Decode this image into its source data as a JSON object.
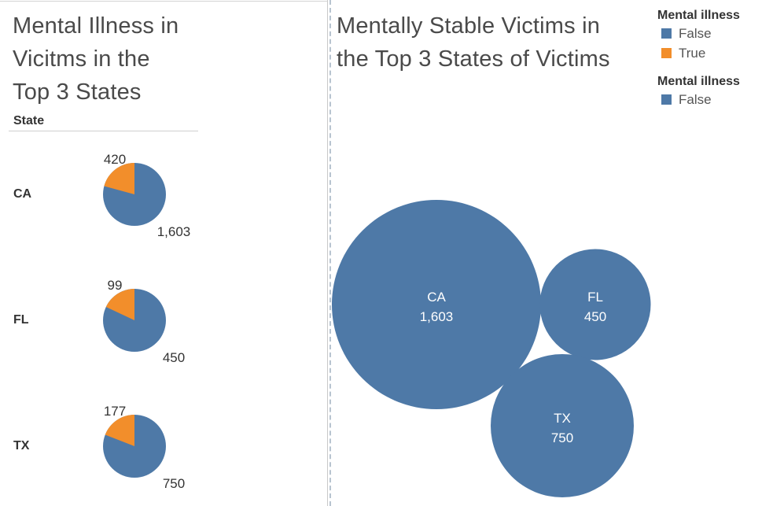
{
  "left_panel": {
    "title": "Mental Illness in\nVicitms in the\nTop 3 States",
    "column_header": "State"
  },
  "right_panel": {
    "title": "Mentally Stable Victims in\nthe Top 3 States of Victims"
  },
  "legends": [
    {
      "title": "Mental illness",
      "items": [
        {
          "label": "False",
          "color": "#4e79a7"
        },
        {
          "label": "True",
          "color": "#f28e2b"
        }
      ]
    },
    {
      "title": "Mental illness",
      "items": [
        {
          "label": "False",
          "color": "#4e79a7"
        }
      ]
    }
  ],
  "chart_data": [
    {
      "type": "pie",
      "title": "Mental Illness in Vicitms in the Top 3 States",
      "row_field": "State",
      "categories": [
        "CA",
        "FL",
        "TX"
      ],
      "series": [
        {
          "name": "False",
          "values": [
            1603,
            450,
            750
          ],
          "labels": [
            "1,603",
            "450",
            "750"
          ]
        },
        {
          "name": "True",
          "values": [
            420,
            99,
            177
          ],
          "labels": [
            "420",
            "99",
            "177"
          ]
        }
      ]
    },
    {
      "type": "bubble",
      "title": "Mentally Stable Victims in the Top 3 States of Victims",
      "series_name": "False",
      "categories": [
        "CA",
        "FL",
        "TX"
      ],
      "values": [
        1603,
        450,
        750
      ],
      "labels": [
        "1,603",
        "450",
        "750"
      ]
    }
  ]
}
